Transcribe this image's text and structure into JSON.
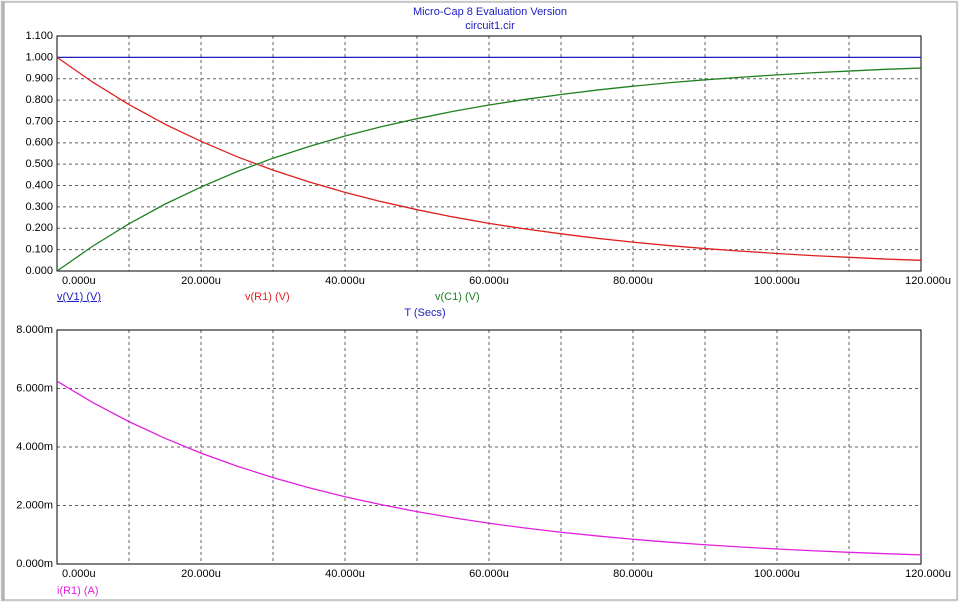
{
  "chart_data": [
    {
      "type": "line",
      "title": "Micro-Cap 8 Evaluation Version",
      "subtitle": "circuit1.cir",
      "xlabel": "T (Secs)",
      "x": [
        0,
        5e-06,
        1e-05,
        1.5e-05,
        2e-05,
        2.5e-05,
        3e-05,
        3.5e-05,
        4e-05,
        4.5e-05,
        5e-05,
        5.5e-05,
        6e-05,
        6.5e-05,
        7e-05,
        7.5e-05,
        8e-05,
        8.5e-05,
        9e-05,
        9.5e-05,
        0.0001,
        0.000105,
        0.00011,
        0.000115,
        0.00012
      ],
      "series": [
        {
          "name": "v(V1) (V)",
          "color": "#2020c0",
          "values": [
            1,
            1,
            1,
            1,
            1,
            1,
            1,
            1,
            1,
            1,
            1,
            1,
            1,
            1,
            1,
            1,
            1,
            1,
            1,
            1,
            1,
            1,
            1,
            1,
            1
          ]
        },
        {
          "name": "v(R1) (V)",
          "color": "#e02020",
          "values": [
            1,
            0.883,
            0.779,
            0.687,
            0.607,
            0.535,
            0.472,
            0.417,
            0.368,
            0.325,
            0.287,
            0.253,
            0.223,
            0.197,
            0.174,
            0.153,
            0.135,
            0.119,
            0.105,
            0.093,
            0.082,
            0.072,
            0.064,
            0.056,
            0.05
          ]
        },
        {
          "name": "v(C1) (V)",
          "color": "#208020",
          "values": [
            0,
            0.117,
            0.221,
            0.313,
            0.393,
            0.465,
            0.528,
            0.583,
            0.632,
            0.675,
            0.713,
            0.747,
            0.777,
            0.803,
            0.826,
            0.847,
            0.865,
            0.881,
            0.895,
            0.907,
            0.918,
            0.928,
            0.936,
            0.944,
            0.95
          ]
        }
      ],
      "xlim": [
        0,
        0.00012
      ],
      "xticks": [
        {
          "value": 0,
          "label": "0.000u"
        },
        {
          "value": 2e-05,
          "label": "20.000u"
        },
        {
          "value": 4e-05,
          "label": "40.000u"
        },
        {
          "value": 6e-05,
          "label": "60.000u"
        },
        {
          "value": 8e-05,
          "label": "80.000u"
        },
        {
          "value": 0.0001,
          "label": "100.000u"
        },
        {
          "value": 0.00012,
          "label": "120.000u"
        }
      ],
      "xminorticks": [
        1e-05,
        3e-05,
        5e-05,
        7e-05,
        9e-05,
        0.00011
      ],
      "ylim": [
        0,
        1.1
      ],
      "yticks": [
        {
          "value": 0,
          "label": "0.000"
        },
        {
          "value": 0.1,
          "label": "0.100"
        },
        {
          "value": 0.2,
          "label": "0.200"
        },
        {
          "value": 0.3,
          "label": "0.300"
        },
        {
          "value": 0.4,
          "label": "0.400"
        },
        {
          "value": 0.5,
          "label": "0.500"
        },
        {
          "value": 0.6,
          "label": "0.600"
        },
        {
          "value": 0.7,
          "label": "0.700"
        },
        {
          "value": 0.8,
          "label": "0.800"
        },
        {
          "value": 0.9,
          "label": "0.900"
        },
        {
          "value": 1,
          "label": "1.000"
        },
        {
          "value": 1.1,
          "label": "1.100"
        }
      ],
      "grid": true
    },
    {
      "type": "line",
      "x": [
        0,
        5e-06,
        1e-05,
        1.5e-05,
        2e-05,
        2.5e-05,
        3e-05,
        3.5e-05,
        4e-05,
        4.5e-05,
        5e-05,
        5.5e-05,
        6e-05,
        6.5e-05,
        7e-05,
        7.5e-05,
        8e-05,
        8.5e-05,
        9e-05,
        9.5e-05,
        0.0001,
        0.000105,
        0.00011,
        0.000115,
        0.00012
      ],
      "series": [
        {
          "name": "i(R1) (A)",
          "color": "#e020e0",
          "values": [
            0.00625,
            0.005516,
            0.004867,
            0.004296,
            0.003791,
            0.003346,
            0.002953,
            0.002606,
            0.002299,
            0.002029,
            0.001791,
            0.00158,
            0.001394,
            0.001231,
            0.001086,
            0.000959,
            0.000846,
            0.000746,
            0.000659,
            0.000581,
            0.000513,
            0.000453,
            0.000399,
            0.000353,
            0.000311
          ]
        }
      ],
      "xlim": [
        0,
        0.00012
      ],
      "xticks": [
        {
          "value": 0,
          "label": "0.000u"
        },
        {
          "value": 2e-05,
          "label": "20.000u"
        },
        {
          "value": 4e-05,
          "label": "40.000u"
        },
        {
          "value": 6e-05,
          "label": "60.000u"
        },
        {
          "value": 8e-05,
          "label": "80.000u"
        },
        {
          "value": 0.0001,
          "label": "100.000u"
        },
        {
          "value": 0.00012,
          "label": "120.000u"
        }
      ],
      "xminorticks": [
        1e-05,
        3e-05,
        5e-05,
        7e-05,
        9e-05,
        0.00011
      ],
      "ylim": [
        0,
        0.008
      ],
      "yticks": [
        {
          "value": 0,
          "label": "0.000m"
        },
        {
          "value": 0.002,
          "label": "2.000m"
        },
        {
          "value": 0.004,
          "label": "4.000m"
        },
        {
          "value": 0.006,
          "label": "6.000m"
        },
        {
          "value": 0.008,
          "label": "8.000m"
        }
      ],
      "grid": true
    }
  ]
}
